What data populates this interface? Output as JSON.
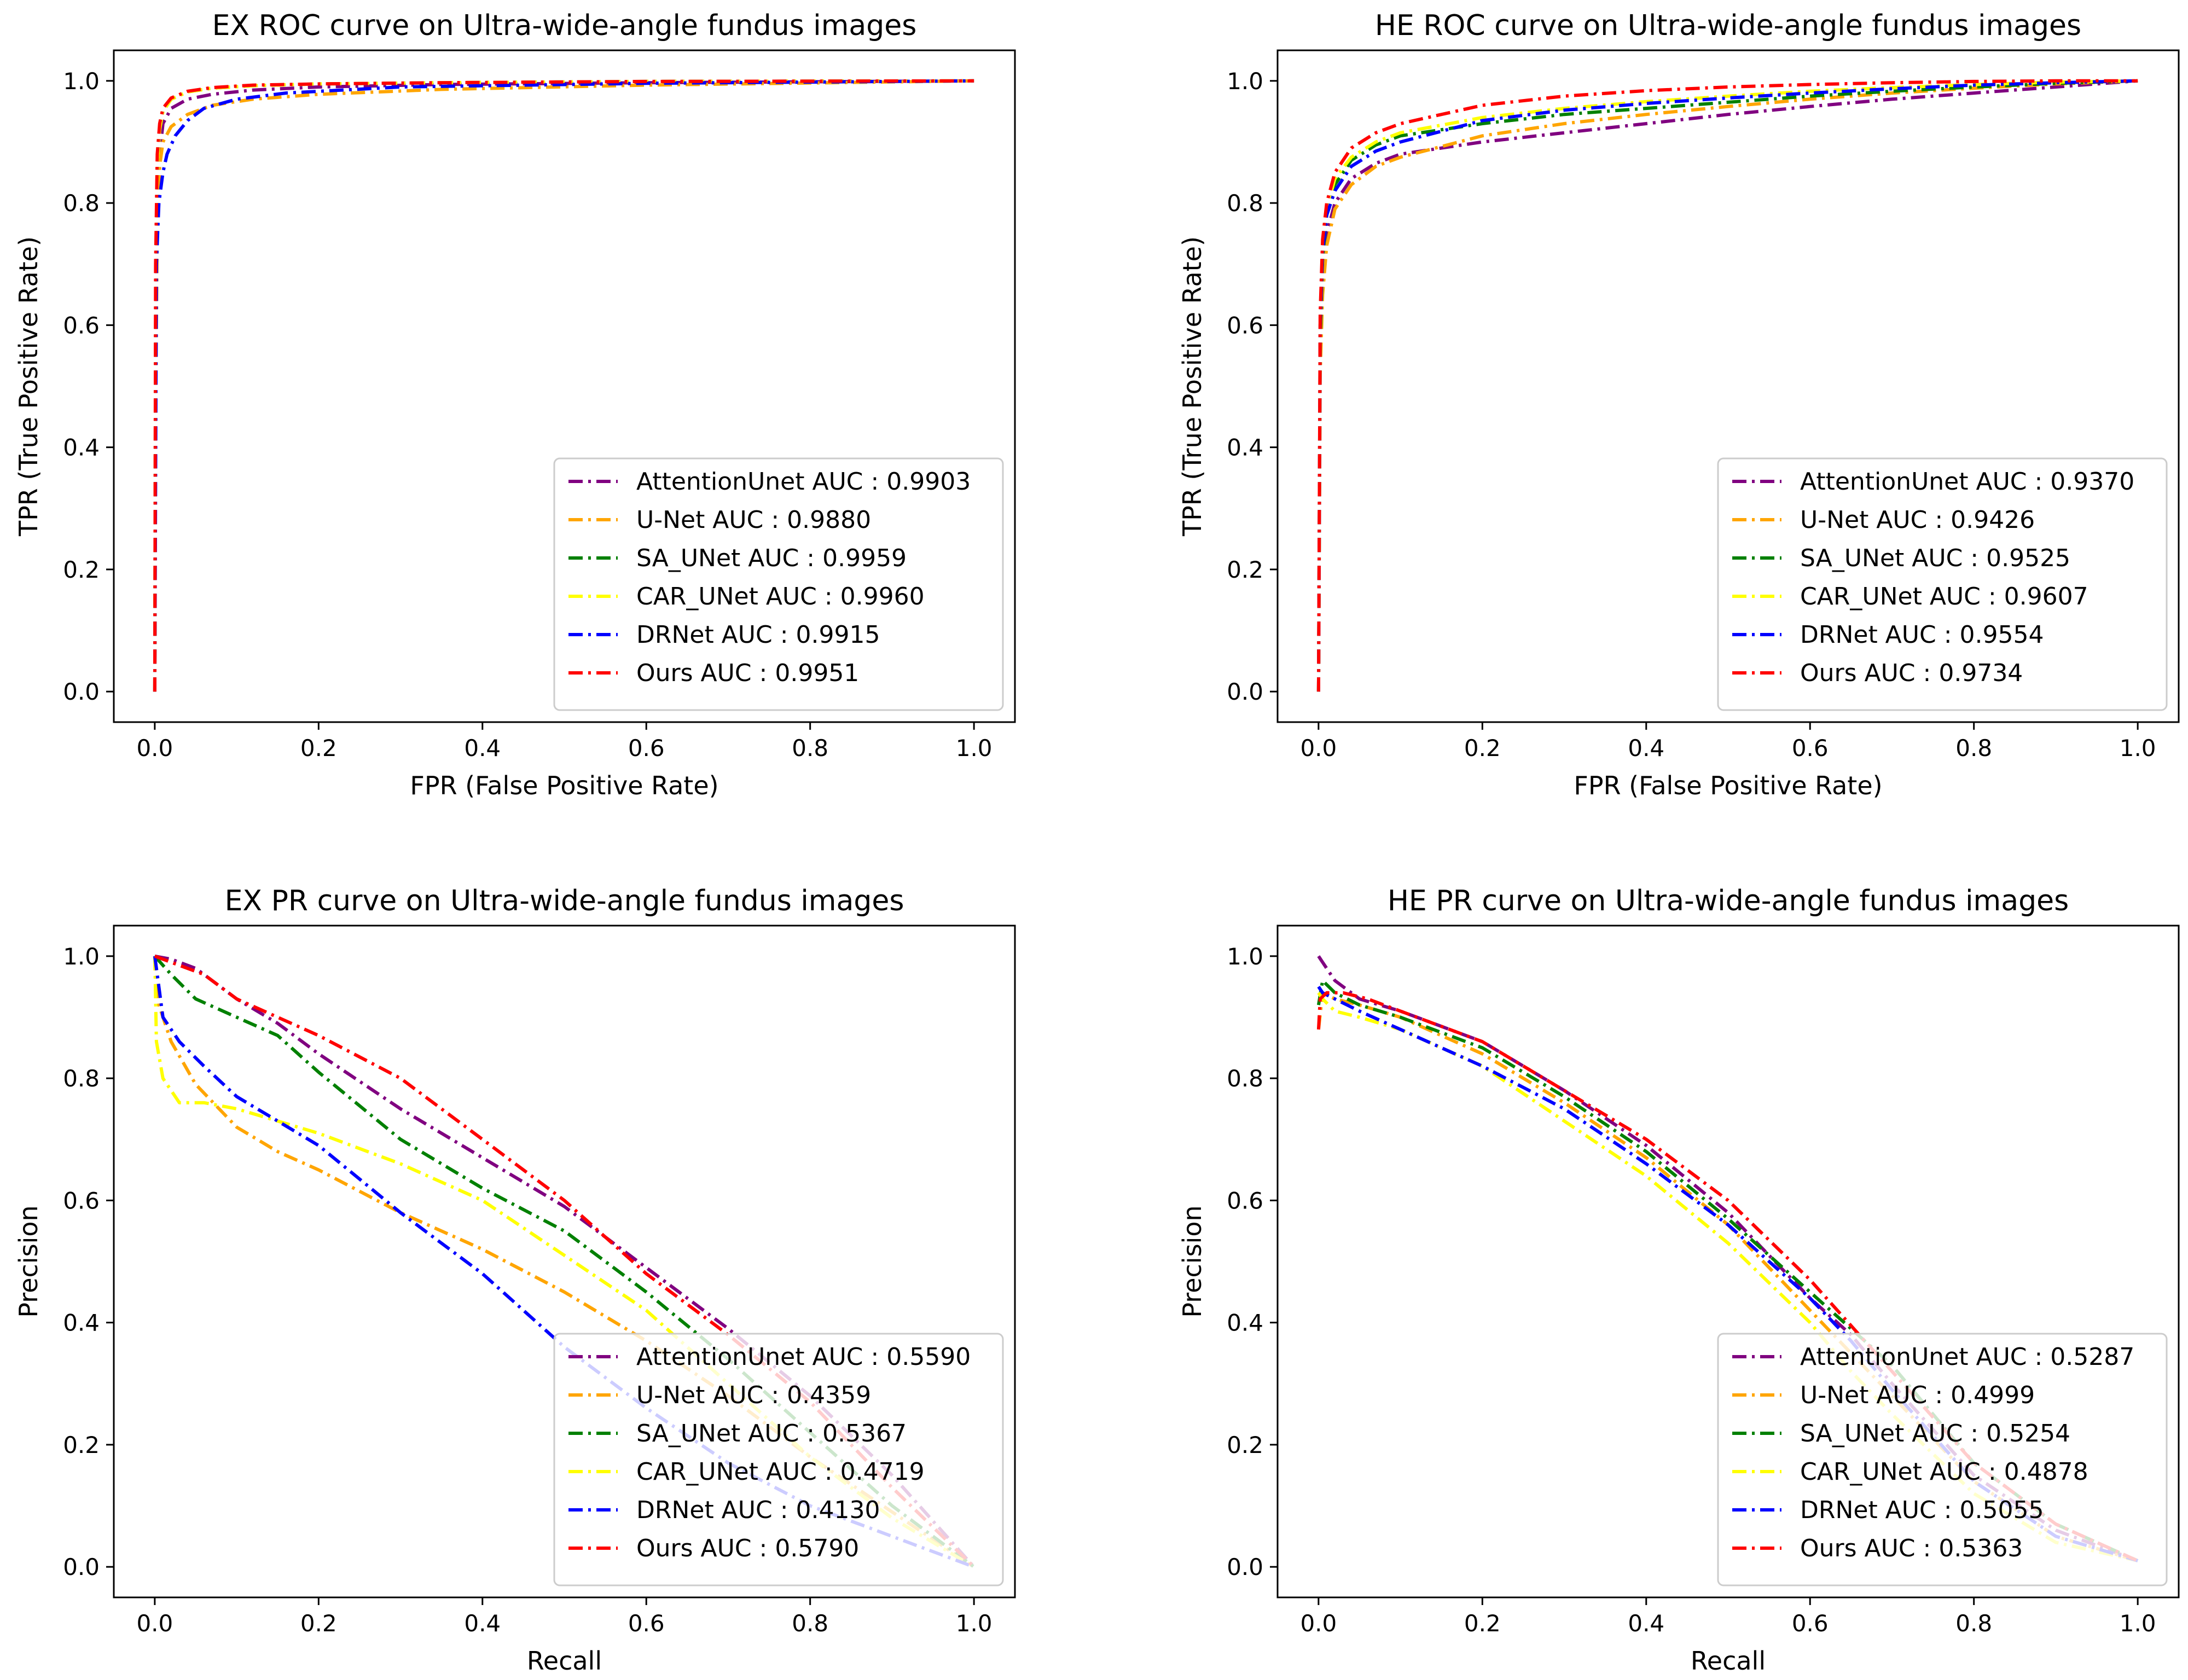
{
  "figure": {
    "series_colors": {
      "AttentionUnet": "#800080",
      "U-Net": "#ffa500",
      "SA_UNet": "#008000",
      "CAR_UNet": "#ffff00",
      "DRNet": "#0000ff",
      "Ours": "#ff0000"
    }
  },
  "chart_data": [
    {
      "id": "ex-roc",
      "type": "line",
      "title": "EX ROC curve on Ultra-wide-angle fundus images",
      "xlabel": "FPR (False Positive Rate)",
      "ylabel": "TPR (True Positive Rate)",
      "xlim": [
        -0.05,
        1.05
      ],
      "ylim": [
        -0.05,
        1.05
      ],
      "xticks": [
        0.0,
        0.2,
        0.4,
        0.6,
        0.8,
        1.0
      ],
      "xtick_labels": [
        "0.0",
        "0.2",
        "0.4",
        "0.6",
        "0.8",
        "1.0"
      ],
      "yticks": [
        0.0,
        0.2,
        0.4,
        0.6,
        0.8,
        1.0
      ],
      "ytick_labels": [
        "0.0",
        "0.2",
        "0.4",
        "0.6",
        "0.8",
        "1.0"
      ],
      "legend_position": "lower-right",
      "series": [
        {
          "name": "AttentionUnet",
          "label": "AttentionUnet AUC :  0.9903",
          "x": [
            0,
            0.001,
            0.003,
            0.006,
            0.01,
            0.02,
            0.04,
            0.07,
            0.12,
            0.2,
            0.35,
            0.6,
            1.0
          ],
          "y": [
            0,
            0.5,
            0.8,
            0.88,
            0.93,
            0.955,
            0.97,
            0.978,
            0.985,
            0.99,
            0.994,
            0.997,
            1.0
          ]
        },
        {
          "name": "U-Net",
          "label": "U-Net AUC :  0.9880",
          "x": [
            0,
            0.001,
            0.003,
            0.006,
            0.01,
            0.02,
            0.04,
            0.07,
            0.12,
            0.2,
            0.35,
            0.6,
            1.0
          ],
          "y": [
            0,
            0.45,
            0.75,
            0.86,
            0.9,
            0.925,
            0.945,
            0.96,
            0.97,
            0.978,
            0.986,
            0.993,
            1.0
          ]
        },
        {
          "name": "SA_UNet",
          "label": "SA_UNet AUC :  0.9959",
          "x": [
            0,
            0.001,
            0.003,
            0.006,
            0.01,
            0.02,
            0.04,
            0.07,
            0.12,
            0.2,
            0.35,
            0.6,
            1.0
          ],
          "y": [
            0,
            0.6,
            0.86,
            0.92,
            0.95,
            0.97,
            0.982,
            0.988,
            0.992,
            0.995,
            0.997,
            0.999,
            1.0
          ]
        },
        {
          "name": "CAR_UNet",
          "label": "CAR_UNet AUC :  0.9960",
          "x": [
            0,
            0.001,
            0.003,
            0.006,
            0.01,
            0.02,
            0.04,
            0.07,
            0.12,
            0.2,
            0.35,
            0.6,
            1.0
          ],
          "y": [
            0,
            0.6,
            0.86,
            0.92,
            0.95,
            0.97,
            0.982,
            0.988,
            0.992,
            0.995,
            0.997,
            0.999,
            1.0
          ]
        },
        {
          "name": "DRNet",
          "label": "DRNet AUC :  0.9915",
          "x": [
            0,
            0.002,
            0.005,
            0.01,
            0.015,
            0.025,
            0.04,
            0.06,
            0.1,
            0.16,
            0.3,
            0.6,
            1.0
          ],
          "y": [
            0,
            0.7,
            0.8,
            0.85,
            0.88,
            0.91,
            0.935,
            0.955,
            0.97,
            0.98,
            0.99,
            0.996,
            1.0
          ]
        },
        {
          "name": "Ours",
          "label": "Ours AUC :  0.9951",
          "x": [
            0,
            0.001,
            0.003,
            0.006,
            0.01,
            0.02,
            0.04,
            0.07,
            0.12,
            0.2,
            0.35,
            0.6,
            1.0
          ],
          "y": [
            0,
            0.7,
            0.88,
            0.93,
            0.955,
            0.972,
            0.983,
            0.989,
            0.993,
            0.995,
            0.997,
            0.999,
            1.0
          ]
        }
      ]
    },
    {
      "id": "he-roc",
      "type": "line",
      "title": "HE ROC curve on Ultra-wide-angle fundus images",
      "xlabel": "FPR (False Positive Rate)",
      "ylabel": "TPR (True Positive Rate)",
      "xlim": [
        -0.05,
        1.05
      ],
      "ylim": [
        -0.05,
        1.05
      ],
      "xticks": [
        0.0,
        0.2,
        0.4,
        0.6,
        0.8,
        1.0
      ],
      "xtick_labels": [
        "0.0",
        "0.2",
        "0.4",
        "0.6",
        "0.8",
        "1.0"
      ],
      "yticks": [
        0.0,
        0.2,
        0.4,
        0.6,
        0.8,
        1.0
      ],
      "ytick_labels": [
        "0.0",
        "0.2",
        "0.4",
        "0.6",
        "0.8",
        "1.0"
      ],
      "legend_position": "lower-right",
      "series": [
        {
          "name": "AttentionUnet",
          "label": "AttentionUnet AUC :  0.9370",
          "x": [
            0,
            0.002,
            0.005,
            0.01,
            0.02,
            0.04,
            0.07,
            0.1,
            0.2,
            0.3,
            0.4,
            0.5,
            0.6,
            0.7,
            0.8,
            0.9,
            1.0
          ],
          "y": [
            0,
            0.55,
            0.68,
            0.75,
            0.8,
            0.84,
            0.865,
            0.88,
            0.9,
            0.915,
            0.93,
            0.945,
            0.958,
            0.97,
            0.98,
            0.99,
            1.0
          ]
        },
        {
          "name": "U-Net",
          "label": "U-Net AUC :  0.9426",
          "x": [
            0,
            0.002,
            0.005,
            0.01,
            0.02,
            0.04,
            0.07,
            0.1,
            0.2,
            0.3,
            0.4,
            0.5,
            0.6,
            0.7,
            0.8,
            0.9,
            1.0
          ],
          "y": [
            0,
            0.52,
            0.65,
            0.73,
            0.79,
            0.83,
            0.86,
            0.875,
            0.91,
            0.93,
            0.945,
            0.958,
            0.97,
            0.98,
            0.988,
            0.995,
            1.0
          ]
        },
        {
          "name": "SA_UNet",
          "label": "SA_UNet AUC :  0.9525",
          "x": [
            0,
            0.002,
            0.005,
            0.01,
            0.02,
            0.04,
            0.07,
            0.1,
            0.2,
            0.3,
            0.4,
            0.5,
            0.6,
            0.7,
            0.8,
            0.9,
            1.0
          ],
          "y": [
            0,
            0.58,
            0.71,
            0.78,
            0.83,
            0.87,
            0.895,
            0.91,
            0.93,
            0.945,
            0.955,
            0.965,
            0.975,
            0.983,
            0.99,
            0.996,
            1.0
          ]
        },
        {
          "name": "CAR_UNet",
          "label": "CAR_UNet AUC :  0.9607",
          "x": [
            0,
            0.002,
            0.005,
            0.01,
            0.02,
            0.04,
            0.07,
            0.1,
            0.2,
            0.3,
            0.4,
            0.5,
            0.6,
            0.7,
            0.8,
            0.9,
            1.0
          ],
          "y": [
            0,
            0.6,
            0.72,
            0.79,
            0.84,
            0.875,
            0.9,
            0.915,
            0.94,
            0.955,
            0.966,
            0.975,
            0.983,
            0.989,
            0.994,
            0.998,
            1.0
          ]
        },
        {
          "name": "DRNet",
          "label": "DRNet AUC :  0.9554",
          "x": [
            0,
            0.002,
            0.005,
            0.01,
            0.02,
            0.04,
            0.07,
            0.1,
            0.2,
            0.3,
            0.4,
            0.5,
            0.6,
            0.7,
            0.8,
            0.9,
            1.0
          ],
          "y": [
            0,
            0.6,
            0.72,
            0.78,
            0.82,
            0.86,
            0.885,
            0.9,
            0.935,
            0.952,
            0.963,
            0.972,
            0.98,
            0.987,
            0.993,
            0.997,
            1.0
          ]
        },
        {
          "name": "Ours",
          "label": "Ours AUC :  0.9734",
          "x": [
            0,
            0.002,
            0.005,
            0.01,
            0.02,
            0.04,
            0.07,
            0.1,
            0.2,
            0.3,
            0.4,
            0.5,
            0.6,
            0.7,
            0.8,
            0.9,
            1.0
          ],
          "y": [
            0,
            0.62,
            0.74,
            0.8,
            0.85,
            0.89,
            0.915,
            0.93,
            0.96,
            0.975,
            0.984,
            0.99,
            0.994,
            0.997,
            0.999,
            1.0,
            1.0
          ]
        }
      ]
    },
    {
      "id": "ex-pr",
      "type": "line",
      "title": "EX PR curve on  Ultra-wide-angle fundus images",
      "xlabel": "Recall",
      "ylabel": "Precision",
      "xlim": [
        -0.05,
        1.05
      ],
      "ylim": [
        -0.05,
        1.05
      ],
      "xticks": [
        0.0,
        0.2,
        0.4,
        0.6,
        0.8,
        1.0
      ],
      "xtick_labels": [
        "0.0",
        "0.2",
        "0.4",
        "0.6",
        "0.8",
        "1.0"
      ],
      "yticks": [
        0.0,
        0.2,
        0.4,
        0.6,
        0.8,
        1.0
      ],
      "ytick_labels": [
        "0.0",
        "0.2",
        "0.4",
        "0.6",
        "0.8",
        "1.0"
      ],
      "legend_position": "lower-right",
      "series": [
        {
          "name": "AttentionUnet",
          "label": "AttentionUnet AUC :  0.5590",
          "x": [
            0,
            0.02,
            0.05,
            0.1,
            0.15,
            0.2,
            0.3,
            0.4,
            0.5,
            0.6,
            0.7,
            0.8,
            0.9,
            1.0
          ],
          "y": [
            1.0,
            0.995,
            0.98,
            0.93,
            0.89,
            0.84,
            0.75,
            0.67,
            0.59,
            0.49,
            0.39,
            0.28,
            0.15,
            0.0
          ]
        },
        {
          "name": "U-Net",
          "label": "U-Net AUC :  0.4359",
          "x": [
            0,
            0.005,
            0.02,
            0.05,
            0.1,
            0.15,
            0.2,
            0.3,
            0.4,
            0.5,
            0.6,
            0.7,
            0.8,
            0.9,
            1.0
          ],
          "y": [
            1.0,
            0.92,
            0.86,
            0.79,
            0.72,
            0.68,
            0.65,
            0.58,
            0.52,
            0.45,
            0.37,
            0.28,
            0.18,
            0.09,
            0.0
          ]
        },
        {
          "name": "SA_UNet",
          "label": "SA_UNet AUC :  0.5367",
          "x": [
            0,
            0.02,
            0.05,
            0.1,
            0.15,
            0.2,
            0.3,
            0.4,
            0.5,
            0.6,
            0.7,
            0.8,
            0.9,
            1.0
          ],
          "y": [
            1.0,
            0.97,
            0.93,
            0.9,
            0.87,
            0.81,
            0.7,
            0.62,
            0.55,
            0.45,
            0.34,
            0.22,
            0.1,
            0.0
          ]
        },
        {
          "name": "CAR_UNet",
          "label": "CAR_UNet AUC :  0.4719",
          "x": [
            0,
            0.002,
            0.01,
            0.03,
            0.06,
            0.1,
            0.15,
            0.2,
            0.3,
            0.4,
            0.5,
            0.6,
            0.7,
            0.8,
            0.9,
            1.0
          ],
          "y": [
            1.0,
            0.86,
            0.8,
            0.76,
            0.76,
            0.75,
            0.73,
            0.71,
            0.66,
            0.6,
            0.51,
            0.42,
            0.3,
            0.18,
            0.08,
            0.0
          ]
        },
        {
          "name": "DRNet",
          "label": "DRNet AUC :  0.4130",
          "x": [
            0,
            0.01,
            0.03,
            0.06,
            0.1,
            0.15,
            0.2,
            0.3,
            0.4,
            0.5,
            0.6,
            0.7,
            0.8,
            0.9,
            1.0
          ],
          "y": [
            1.0,
            0.9,
            0.86,
            0.82,
            0.77,
            0.73,
            0.69,
            0.58,
            0.48,
            0.36,
            0.26,
            0.17,
            0.1,
            0.05,
            0.0
          ]
        },
        {
          "name": "Ours",
          "label": "Ours AUC :  0.5790",
          "x": [
            0,
            0.02,
            0.06,
            0.1,
            0.15,
            0.2,
            0.3,
            0.4,
            0.5,
            0.6,
            0.7,
            0.8,
            0.9,
            1.0
          ],
          "y": [
            1.0,
            0.99,
            0.97,
            0.93,
            0.9,
            0.87,
            0.8,
            0.7,
            0.6,
            0.48,
            0.38,
            0.27,
            0.13,
            0.0
          ]
        }
      ]
    },
    {
      "id": "he-pr",
      "type": "line",
      "title": "HE PR curve on  Ultra-wide-angle fundus images",
      "xlabel": "Recall",
      "ylabel": "Precision",
      "xlim": [
        -0.05,
        1.05
      ],
      "ylim": [
        -0.05,
        1.05
      ],
      "xticks": [
        0.0,
        0.2,
        0.4,
        0.6,
        0.8,
        1.0
      ],
      "xtick_labels": [
        "0.0",
        "0.2",
        "0.4",
        "0.6",
        "0.8",
        "1.0"
      ],
      "yticks": [
        0.0,
        0.2,
        0.4,
        0.6,
        0.8,
        1.0
      ],
      "ytick_labels": [
        "0.0",
        "0.2",
        "0.4",
        "0.6",
        "0.8",
        "1.0"
      ],
      "legend_position": "lower-right",
      "series": [
        {
          "name": "AttentionUnet",
          "label": "AttentionUnet AUC :  0.5287",
          "x": [
            0,
            0.005,
            0.02,
            0.05,
            0.1,
            0.2,
            0.3,
            0.4,
            0.5,
            0.6,
            0.65,
            0.7,
            0.8,
            0.9,
            1.0
          ],
          "y": [
            1.0,
            0.99,
            0.96,
            0.93,
            0.91,
            0.86,
            0.78,
            0.69,
            0.58,
            0.44,
            0.38,
            0.3,
            0.15,
            0.06,
            0.01
          ]
        },
        {
          "name": "U-Net",
          "label": "U-Net AUC :  0.4999",
          "x": [
            0,
            0.005,
            0.02,
            0.05,
            0.1,
            0.2,
            0.3,
            0.4,
            0.5,
            0.6,
            0.65,
            0.7,
            0.8,
            0.9,
            1.0
          ],
          "y": [
            0.88,
            0.94,
            0.93,
            0.92,
            0.9,
            0.84,
            0.76,
            0.67,
            0.56,
            0.42,
            0.35,
            0.28,
            0.14,
            0.05,
            0.01
          ]
        },
        {
          "name": "SA_UNet",
          "label": "SA_UNet AUC :  0.5254",
          "x": [
            0,
            0.005,
            0.02,
            0.05,
            0.1,
            0.2,
            0.3,
            0.4,
            0.5,
            0.6,
            0.7,
            0.8,
            0.9,
            1.0
          ],
          "y": [
            0.92,
            0.96,
            0.94,
            0.92,
            0.9,
            0.85,
            0.77,
            0.68,
            0.57,
            0.45,
            0.33,
            0.17,
            0.07,
            0.01
          ]
        },
        {
          "name": "CAR_UNet",
          "label": "CAR_UNet AUC :  0.4878",
          "x": [
            0,
            0.005,
            0.02,
            0.05,
            0.1,
            0.2,
            0.3,
            0.4,
            0.5,
            0.6,
            0.65,
            0.7,
            0.8,
            0.9,
            1.0
          ],
          "y": [
            0.94,
            0.93,
            0.91,
            0.9,
            0.88,
            0.82,
            0.73,
            0.64,
            0.53,
            0.4,
            0.32,
            0.25,
            0.12,
            0.04,
            0.01
          ]
        },
        {
          "name": "DRNet",
          "label": "DRNet AUC :  0.5055",
          "x": [
            0,
            0.005,
            0.02,
            0.05,
            0.1,
            0.2,
            0.3,
            0.4,
            0.5,
            0.6,
            0.65,
            0.7,
            0.8,
            0.9,
            1.0
          ],
          "y": [
            0.95,
            0.94,
            0.93,
            0.91,
            0.88,
            0.82,
            0.75,
            0.66,
            0.56,
            0.44,
            0.37,
            0.29,
            0.14,
            0.05,
            0.01
          ]
        },
        {
          "name": "Ours",
          "label": "Ours AUC :  0.5363",
          "x": [
            0,
            0.002,
            0.01,
            0.03,
            0.06,
            0.1,
            0.2,
            0.3,
            0.4,
            0.5,
            0.6,
            0.7,
            0.8,
            0.9,
            1.0
          ],
          "y": [
            0.88,
            0.93,
            0.94,
            0.94,
            0.93,
            0.91,
            0.86,
            0.78,
            0.7,
            0.6,
            0.47,
            0.32,
            0.17,
            0.07,
            0.01
          ]
        }
      ]
    }
  ]
}
